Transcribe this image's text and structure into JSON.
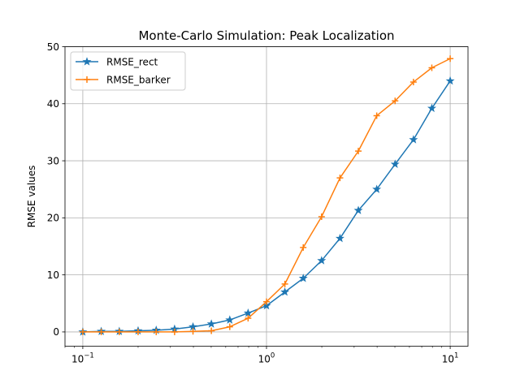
{
  "chart_data": {
    "type": "line",
    "title": "Monte-Carlo Simulation: Peak Localization",
    "xlabel": "",
    "ylabel": "RMSE values",
    "xscale": "log",
    "xlim": [
      0.08,
      12.5
    ],
    "ylim": [
      -2.5,
      50
    ],
    "xticks": [
      {
        "value": 0.1,
        "base": "10",
        "exp": "−1"
      },
      {
        "value": 1,
        "base": "10",
        "exp": "0"
      },
      {
        "value": 10,
        "base": "10",
        "exp": "1"
      }
    ],
    "yticks": [
      0,
      10,
      20,
      30,
      40,
      50
    ],
    "grid": true,
    "legend_position": "top-left",
    "x": [
      0.1,
      0.126,
      0.158,
      0.2,
      0.251,
      0.316,
      0.398,
      0.501,
      0.631,
      0.794,
      1.0,
      1.259,
      1.585,
      1.995,
      2.512,
      3.162,
      3.981,
      5.012,
      6.31,
      7.943,
      10.0
    ],
    "series": [
      {
        "name": "RMSE_rect",
        "color": "#1f77b4",
        "marker": "star",
        "values": [
          0.0,
          0.1,
          0.1,
          0.2,
          0.3,
          0.5,
          0.9,
          1.4,
          2.1,
          3.3,
          4.6,
          7.0,
          9.4,
          12.5,
          16.4,
          21.3,
          25.0,
          29.4,
          33.7,
          39.2,
          44.0
        ]
      },
      {
        "name": "RMSE_barker",
        "color": "#ff7f0e",
        "marker": "plus",
        "values": [
          0.0,
          0.0,
          0.0,
          0.0,
          0.0,
          0.0,
          0.1,
          0.2,
          0.9,
          2.4,
          5.3,
          8.4,
          14.8,
          20.2,
          27.0,
          31.7,
          37.9,
          40.5,
          43.8,
          46.3,
          47.9
        ]
      }
    ]
  }
}
